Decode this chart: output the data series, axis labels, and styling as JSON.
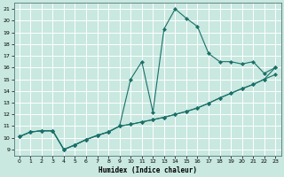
{
  "xlabel": "Humidex (Indice chaleur)",
  "bg_color": "#c8e8e0",
  "grid_color": "#ffffff",
  "line_color": "#1a7068",
  "xlim": [
    -0.5,
    23.5
  ],
  "ylim": [
    8.5,
    21.5
  ],
  "xticks": [
    0,
    1,
    2,
    3,
    4,
    5,
    6,
    7,
    8,
    9,
    10,
    11,
    12,
    13,
    14,
    15,
    16,
    17,
    18,
    19,
    20,
    21,
    22,
    23
  ],
  "yticks": [
    9,
    10,
    11,
    12,
    13,
    14,
    15,
    16,
    17,
    18,
    19,
    20,
    21
  ],
  "line1_x": [
    0,
    1,
    2,
    3,
    4,
    5,
    6,
    7,
    8,
    9,
    10,
    11,
    12,
    13,
    14,
    15,
    16,
    17,
    18,
    19,
    20,
    21,
    22,
    23
  ],
  "line1_y": [
    10.1,
    10.5,
    10.6,
    10.6,
    9.0,
    9.4,
    9.85,
    10.2,
    10.5,
    11.0,
    11.15,
    11.35,
    11.55,
    11.75,
    12.0,
    12.25,
    12.55,
    12.95,
    13.4,
    13.8,
    14.2,
    14.55,
    15.0,
    15.4
  ],
  "line2_x": [
    0,
    1,
    2,
    3,
    4,
    5,
    6,
    7,
    8,
    9,
    10,
    11,
    12,
    13,
    14,
    15,
    16,
    17,
    18,
    19,
    20,
    21,
    22,
    23
  ],
  "line2_y": [
    10.1,
    10.5,
    10.6,
    10.6,
    9.0,
    9.4,
    9.85,
    10.2,
    10.5,
    11.0,
    11.15,
    11.35,
    11.55,
    11.75,
    12.0,
    12.25,
    12.55,
    12.95,
    13.4,
    13.8,
    14.2,
    14.55,
    15.0,
    16.0
  ],
  "line3_x": [
    0,
    1,
    2,
    3,
    4,
    5,
    6,
    7,
    8,
    9,
    10,
    11,
    12,
    13,
    14,
    15,
    16,
    17,
    18,
    19,
    20,
    21,
    22,
    23
  ],
  "line3_y": [
    10.1,
    10.5,
    10.6,
    10.6,
    9.0,
    9.4,
    9.85,
    10.2,
    10.5,
    11.0,
    15.0,
    16.5,
    12.2,
    19.3,
    21.0,
    20.2,
    19.5,
    17.2,
    16.5,
    16.5,
    16.3,
    16.5,
    15.5,
    16.0
  ]
}
